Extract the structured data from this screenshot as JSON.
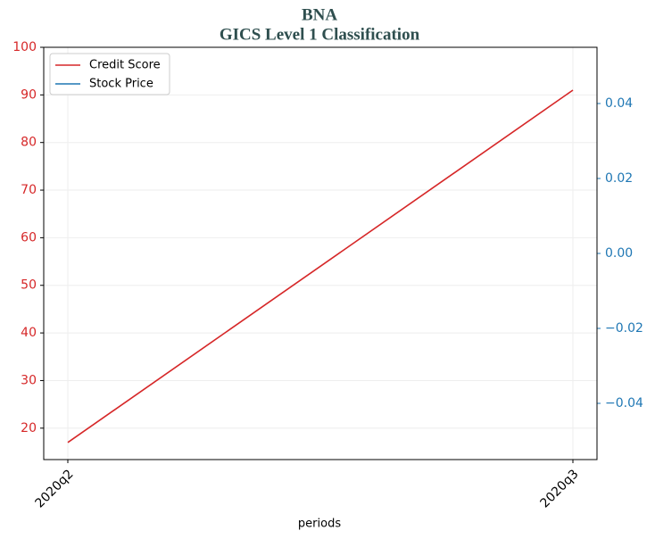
{
  "chart_data": {
    "type": "line",
    "title": "BNA",
    "subtitle": "GICS Level 1 Classification",
    "xlabel": "periods",
    "categories": [
      "2020q2",
      "2020q3"
    ],
    "series": [
      {
        "name": "Credit Score",
        "color": "#d62728",
        "values": [
          17,
          91
        ]
      },
      {
        "name": "Stock Price",
        "color": "#1f77b4",
        "axis": "y2",
        "values": [
          null,
          null
        ]
      }
    ],
    "ylim": [
      13.4,
      100
    ],
    "yticks": [
      20,
      30,
      40,
      50,
      60,
      70,
      80,
      90,
      100
    ],
    "y2lim": [
      -0.055,
      0.055
    ],
    "y2ticks": [
      {
        "value": -0.04,
        "label": "−0.04"
      },
      {
        "value": -0.02,
        "label": "−0.02"
      },
      {
        "value": 0,
        "label": "0.00"
      },
      0.02,
      0.04
    ],
    "grid": true,
    "legend": "upper left"
  }
}
